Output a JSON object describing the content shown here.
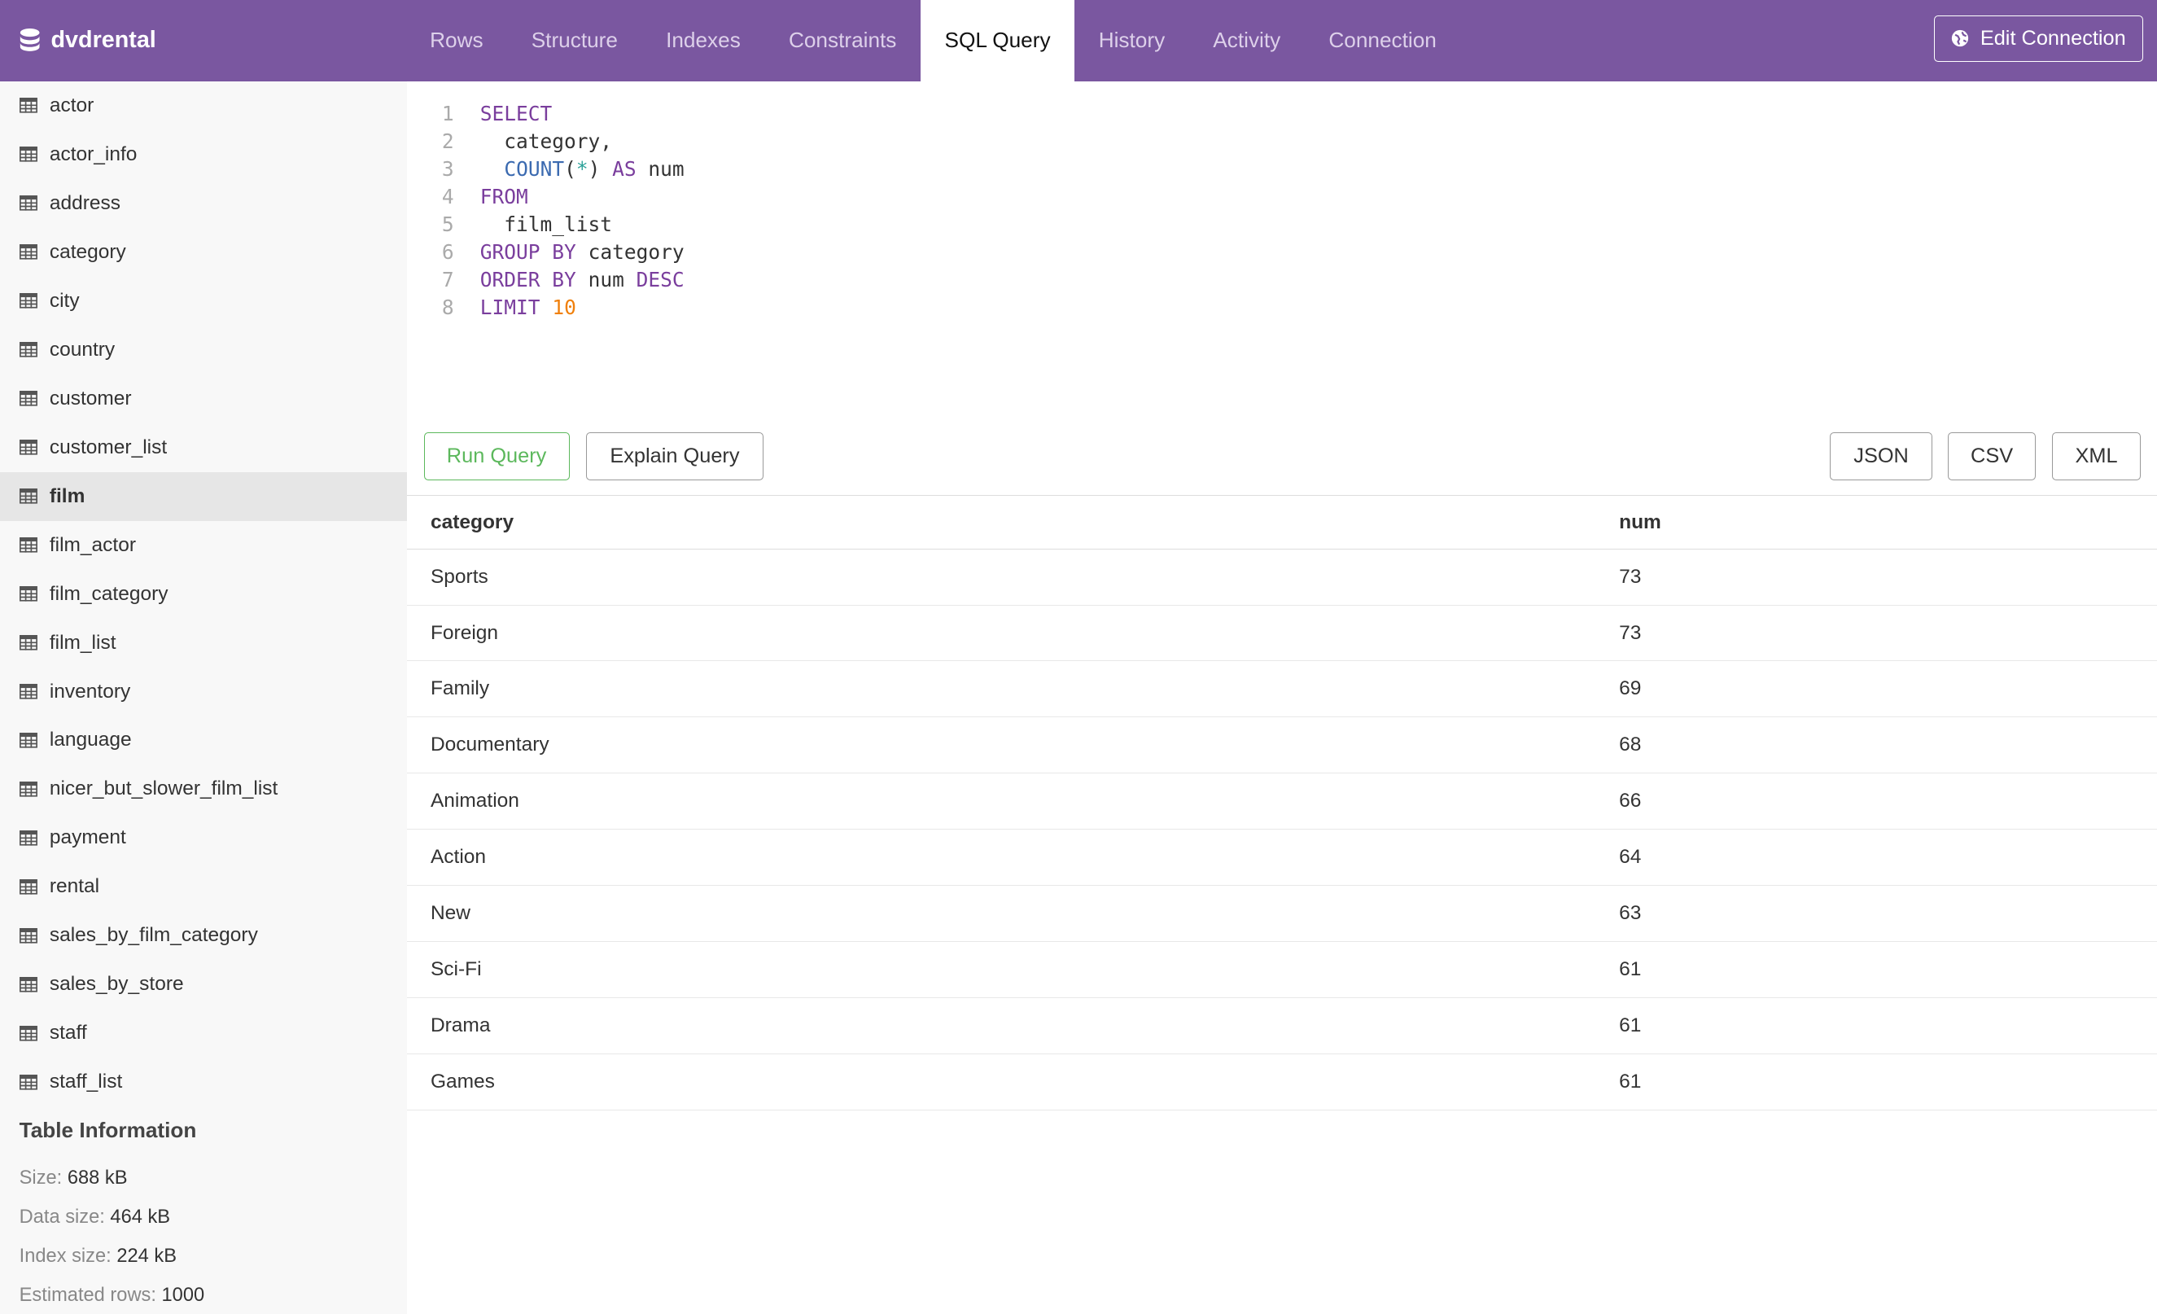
{
  "header": {
    "title": "dvdrental",
    "tabs": [
      {
        "label": "Rows"
      },
      {
        "label": "Structure"
      },
      {
        "label": "Indexes"
      },
      {
        "label": "Constraints"
      },
      {
        "label": "SQL Query",
        "active": true
      },
      {
        "label": "History"
      },
      {
        "label": "Activity"
      },
      {
        "label": "Connection"
      }
    ],
    "edit_connection": "Edit Connection",
    "accent": "#7a57a0"
  },
  "sidebar": {
    "tables": [
      "actor",
      "actor_info",
      "address",
      "category",
      "city",
      "country",
      "customer",
      "customer_list",
      "film",
      "film_actor",
      "film_category",
      "film_list",
      "inventory",
      "language",
      "nicer_but_slower_film_list",
      "payment",
      "rental",
      "sales_by_film_category",
      "sales_by_store",
      "staff",
      "staff_list"
    ],
    "selected": "film",
    "info": {
      "title": "Table Information",
      "rows": [
        {
          "label": "Size:",
          "value": "688 kB"
        },
        {
          "label": "Data size:",
          "value": "464 kB"
        },
        {
          "label": "Index size:",
          "value": "224 kB"
        },
        {
          "label": "Estimated rows:",
          "value": "1000"
        }
      ]
    }
  },
  "editor": {
    "lines": [
      [
        {
          "t": "SELECT",
          "c": "kw"
        }
      ],
      [
        {
          "t": "  category,",
          "c": "tx"
        }
      ],
      [
        {
          "t": "  ",
          "c": "tx"
        },
        {
          "t": "COUNT",
          "c": "fn"
        },
        {
          "t": "(",
          "c": "tx"
        },
        {
          "t": "*",
          "c": "op"
        },
        {
          "t": ") ",
          "c": "tx"
        },
        {
          "t": "AS",
          "c": "kw"
        },
        {
          "t": " num",
          "c": "tx"
        }
      ],
      [
        {
          "t": "FROM",
          "c": "kw"
        }
      ],
      [
        {
          "t": "  film_list",
          "c": "tx"
        }
      ],
      [
        {
          "t": "GROUP BY",
          "c": "kw"
        },
        {
          "t": " category",
          "c": "tx"
        }
      ],
      [
        {
          "t": "ORDER BY",
          "c": "kw"
        },
        {
          "t": " num ",
          "c": "tx"
        },
        {
          "t": "DESC",
          "c": "kw"
        }
      ],
      [
        {
          "t": "LIMIT",
          "c": "kw"
        },
        {
          "t": " ",
          "c": "tx"
        },
        {
          "t": "10",
          "c": "num"
        }
      ]
    ]
  },
  "actions": {
    "run": "Run Query",
    "explain": "Explain Query",
    "json": "JSON",
    "csv": "CSV",
    "xml": "XML"
  },
  "results": {
    "columns": [
      "category",
      "num"
    ],
    "rows": [
      [
        "Sports",
        "73"
      ],
      [
        "Foreign",
        "73"
      ],
      [
        "Family",
        "69"
      ],
      [
        "Documentary",
        "68"
      ],
      [
        "Animation",
        "66"
      ],
      [
        "Action",
        "64"
      ],
      [
        "New",
        "63"
      ],
      [
        "Sci-Fi",
        "61"
      ],
      [
        "Drama",
        "61"
      ],
      [
        "Games",
        "61"
      ]
    ]
  }
}
